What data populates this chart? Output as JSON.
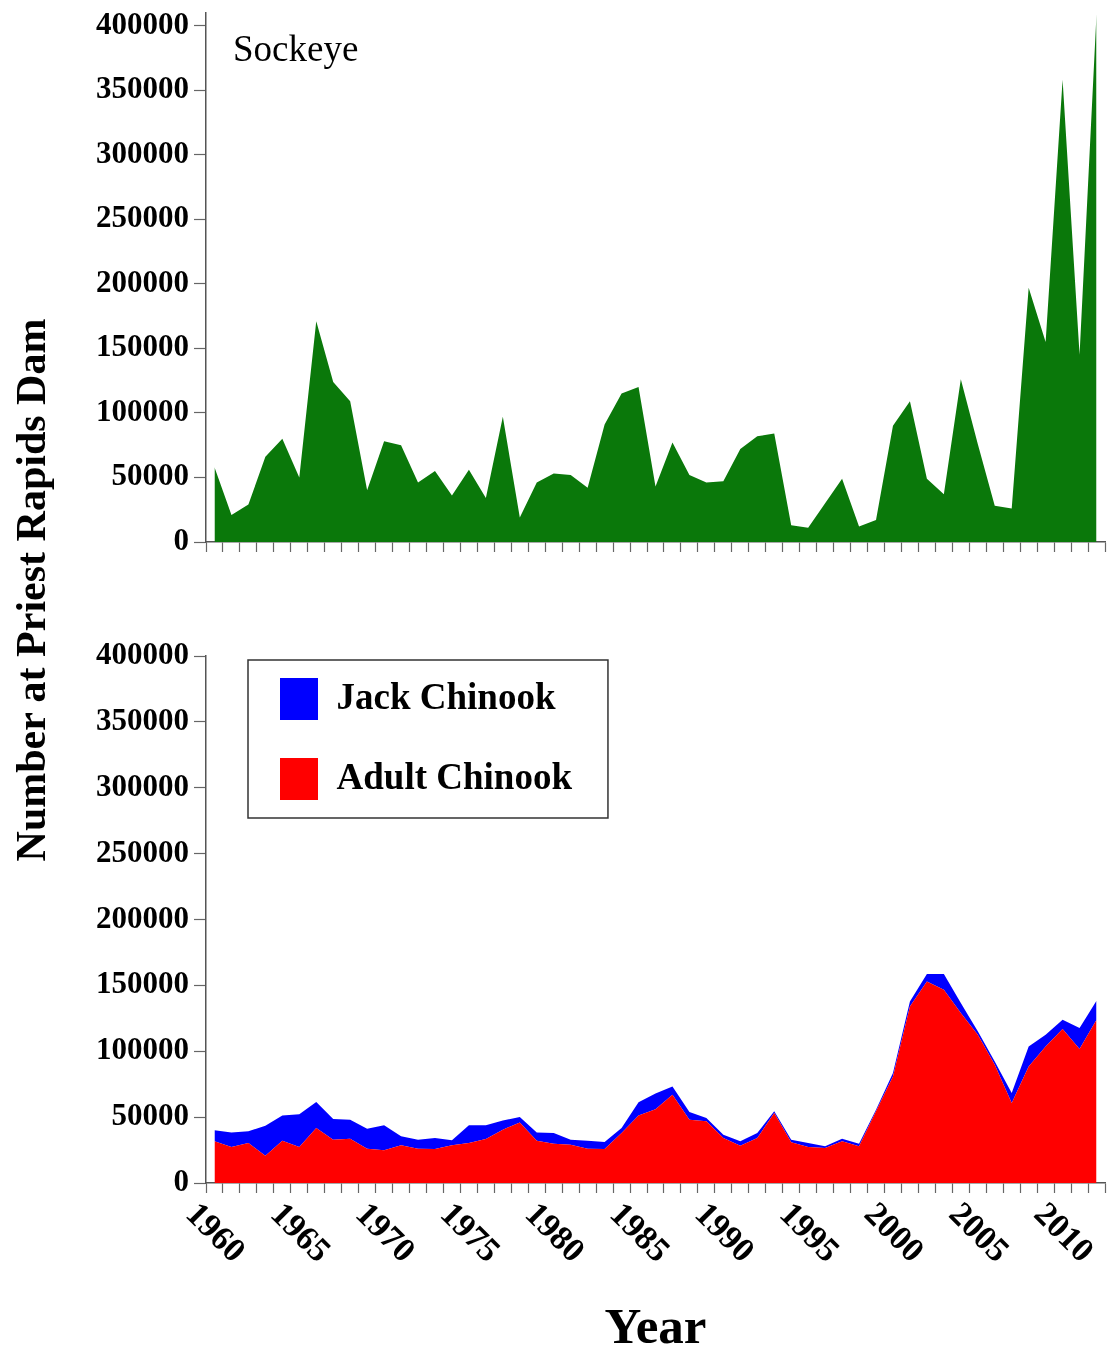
{
  "chart_data": [
    {
      "type": "area",
      "title": "Sockeye",
      "ylabel": "Number at Priest Rapids Dam",
      "color": "#0a780a",
      "categories": [
        "1960",
        null,
        null,
        null,
        null,
        "1965",
        null,
        null,
        null,
        null,
        "1970",
        null,
        null,
        null,
        null,
        "1975",
        null,
        null,
        null,
        null,
        "1980",
        null,
        null,
        null,
        null,
        "1985",
        null,
        null,
        null,
        null,
        "1990",
        null,
        null,
        null,
        null,
        "1995",
        null,
        null,
        null,
        null,
        "2000",
        null,
        null,
        null,
        null,
        "2005",
        null,
        null,
        null,
        null,
        "2010",
        null,
        null
      ],
      "values": [
        58000,
        21000,
        29000,
        66000,
        80000,
        50000,
        171000,
        124000,
        109000,
        40000,
        78000,
        75000,
        46000,
        55000,
        36000,
        56000,
        34000,
        97000,
        19000,
        46000,
        53000,
        52000,
        42000,
        91000,
        115000,
        120000,
        43000,
        77000,
        52000,
        46000,
        47000,
        72000,
        82000,
        84000,
        13000,
        11000,
        30000,
        49000,
        12000,
        17000,
        90000,
        109000,
        49000,
        37000,
        126000,
        76000,
        28000,
        26000,
        197000,
        155000,
        358000,
        145000,
        409000
      ],
      "ylim": [
        0,
        410000
      ],
      "yticks": [
        0,
        50000,
        100000,
        150000,
        200000,
        250000,
        300000,
        350000,
        400000
      ],
      "tick_labels": "y"
    },
    {
      "type": "area",
      "stacked": true,
      "xlabel": "Year",
      "legend": "top left",
      "categories": [
        "1960",
        null,
        null,
        null,
        null,
        "1965",
        null,
        null,
        null,
        null,
        "1970",
        null,
        null,
        null,
        null,
        "1975",
        null,
        null,
        null,
        null,
        "1980",
        null,
        null,
        null,
        null,
        "1985",
        null,
        null,
        null,
        null,
        "1990",
        null,
        null,
        null,
        null,
        "1995",
        null,
        null,
        null,
        null,
        "2000",
        null,
        null,
        null,
        null,
        "2005",
        null,
        null,
        null,
        null,
        "2010",
        null,
        null
      ],
      "series": [
        {
          "name": "Adult Chinook",
          "color": "#ff0000",
          "values": [
            31600,
            27300,
            30300,
            20700,
            32100,
            27300,
            41700,
            32900,
            33600,
            26000,
            24800,
            28600,
            26000,
            25800,
            28600,
            30300,
            33400,
            40500,
            46000,
            32100,
            29800,
            29100,
            26000,
            25800,
            37900,
            51300,
            56000,
            67000,
            48100,
            46800,
            34100,
            28300,
            34100,
            53100,
            30900,
            27300,
            26600,
            31600,
            27800,
            54400,
            80900,
            134000,
            153000,
            146700,
            129000,
            112500,
            89800,
            60700,
            88500,
            103700,
            116800,
            101700,
            123900
          ]
        },
        {
          "name": "Jack Chinook",
          "color": "#0000ff",
          "values": [
            8400,
            11100,
            8900,
            22800,
            19200,
            24800,
            19800,
            15700,
            14500,
            15200,
            19000,
            6800,
            6900,
            8300,
            3800,
            13500,
            10400,
            7000,
            4100,
            6300,
            8100,
            3800,
            6100,
            5300,
            3800,
            9900,
            12000,
            6300,
            5800,
            2500,
            2600,
            3300,
            3800,
            1300,
            2000,
            3000,
            1200,
            2000,
            2000,
            1200,
            2600,
            3800,
            5600,
            11900,
            7600,
            2600,
            2500,
            7600,
            15200,
            8800,
            7100,
            15900,
            14400
          ]
        }
      ],
      "ylim": [
        0,
        400000
      ],
      "yticks": [
        0,
        50000,
        100000,
        150000,
        200000,
        250000,
        300000,
        350000,
        400000
      ]
    }
  ]
}
